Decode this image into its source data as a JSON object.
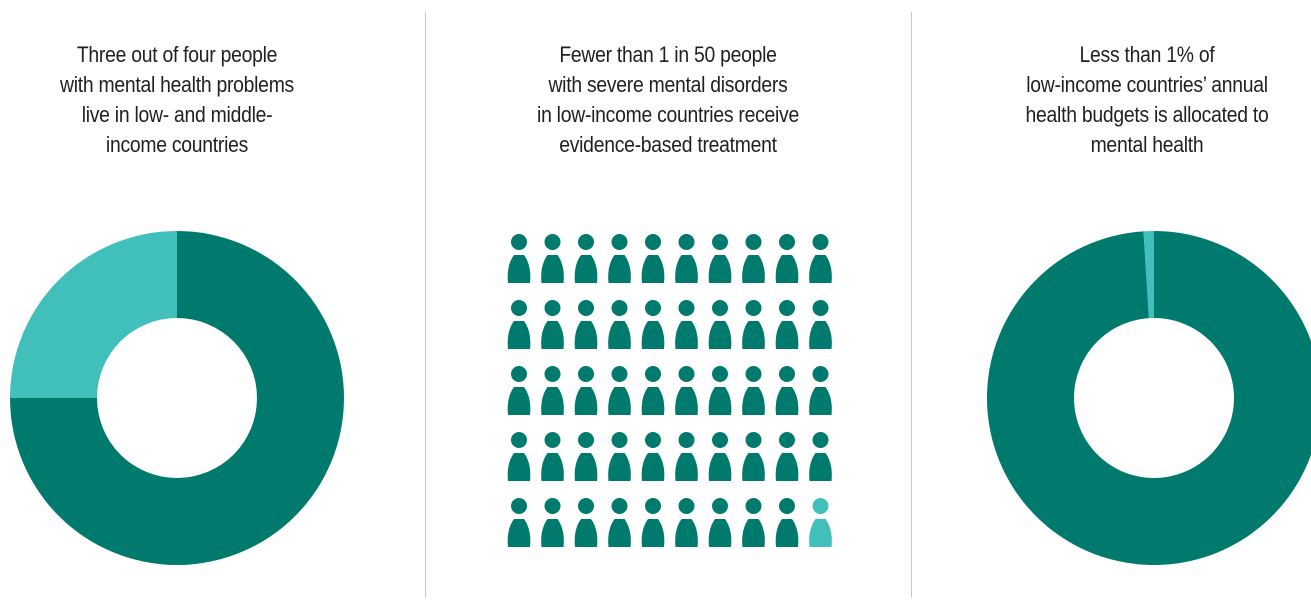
{
  "panels": [
    {
      "lines": [
        "Three out of four people",
        "with mental health problems",
        "live in low- and middle-",
        "income countries"
      ]
    },
    {
      "lines": [
        "Fewer than 1 in 50 people",
        "with severe mental disorders",
        "in low-income countries receive",
        "evidence-based treatment"
      ]
    },
    {
      "lines": [
        "Less than 1% of",
        "low-income countries’ annual",
        "health budgets is allocated to",
        "mental health"
      ]
    }
  ],
  "colors": {
    "dark": "#007a6c",
    "light": "#40bfbb",
    "divider": "#c8c8c8",
    "text": "#231f20"
  },
  "chart_data": [
    {
      "type": "pie",
      "style": "donut",
      "slices": [
        {
          "value": 75,
          "color": "dark"
        },
        {
          "value": 25,
          "color": "light"
        }
      ]
    },
    {
      "type": "pictogram",
      "icon": "person-icon",
      "rows": 5,
      "columns": 10,
      "total": 50,
      "highlighted": 1,
      "highlight_color": "light",
      "base_color": "dark"
    },
    {
      "type": "pie",
      "style": "donut",
      "slices": [
        {
          "value": 99,
          "color": "dark"
        },
        {
          "value": 1,
          "color": "light"
        }
      ]
    }
  ]
}
